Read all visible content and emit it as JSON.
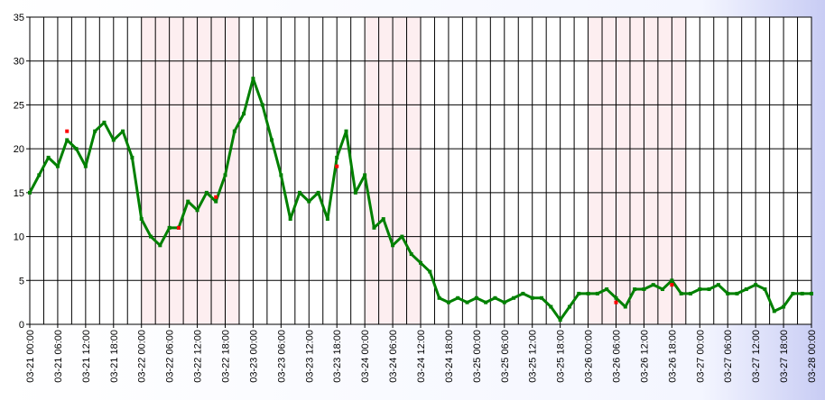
{
  "chart_data": {
    "type": "line",
    "x": [
      "03-21 00:00",
      "03-21 02:00",
      "03-21 04:00",
      "03-21 06:00",
      "03-21 08:00",
      "03-21 10:00",
      "03-21 12:00",
      "03-21 14:00",
      "03-21 16:00",
      "03-21 18:00",
      "03-21 20:00",
      "03-21 22:00",
      "03-22 00:00",
      "03-22 02:00",
      "03-22 04:00",
      "03-22 06:00",
      "03-22 08:00",
      "03-22 10:00",
      "03-22 12:00",
      "03-22 14:00",
      "03-22 16:00",
      "03-22 18:00",
      "03-22 20:00",
      "03-22 22:00",
      "03-23 00:00",
      "03-23 02:00",
      "03-23 04:00",
      "03-23 06:00",
      "03-23 08:00",
      "03-23 10:00",
      "03-23 12:00",
      "03-23 14:00",
      "03-23 16:00",
      "03-23 18:00",
      "03-23 20:00",
      "03-23 22:00",
      "03-24 00:00",
      "03-24 02:00",
      "03-24 04:00",
      "03-24 06:00",
      "03-24 08:00",
      "03-24 10:00",
      "03-24 12:00",
      "03-24 14:00",
      "03-24 16:00",
      "03-24 18:00",
      "03-24 20:00",
      "03-24 22:00",
      "03-25 00:00",
      "03-25 02:00",
      "03-25 04:00",
      "03-25 06:00",
      "03-25 08:00",
      "03-25 10:00",
      "03-25 12:00",
      "03-25 14:00",
      "03-25 16:00",
      "03-25 18:00",
      "03-25 20:00",
      "03-25 22:00",
      "03-26 00:00",
      "03-26 02:00",
      "03-26 04:00",
      "03-26 06:00",
      "03-26 08:00",
      "03-26 10:00",
      "03-26 12:00",
      "03-26 14:00",
      "03-26 16:00",
      "03-26 18:00",
      "03-26 20:00",
      "03-26 22:00",
      "03-27 00:00",
      "03-27 02:00",
      "03-27 04:00",
      "03-27 06:00",
      "03-27 08:00",
      "03-27 10:00",
      "03-27 12:00",
      "03-27 14:00",
      "03-27 16:00",
      "03-27 18:00",
      "03-27 20:00",
      "03-27 22:00",
      "03-28 00:00"
    ],
    "series": [
      {
        "color": "#008000",
        "values": [
          15,
          17,
          19,
          18,
          21,
          20,
          18,
          22,
          23,
          21,
          22,
          19,
          12,
          10,
          9,
          11,
          11,
          14,
          13,
          15,
          14,
          17,
          22,
          24,
          28,
          25,
          21,
          17,
          12,
          15,
          14,
          15,
          12,
          19,
          22,
          15,
          17,
          11,
          12,
          9,
          10,
          8,
          7,
          6,
          3,
          2.5,
          3,
          2.5,
          3,
          2.5,
          3,
          2.5,
          3,
          3.5,
          3,
          3,
          2,
          0.5,
          2,
          3.5,
          3.5,
          3.5,
          4,
          3,
          2,
          4,
          4,
          4.5,
          4,
          5,
          3.5,
          3.5,
          4,
          4,
          4.5,
          3.5,
          3.5,
          4,
          4.5,
          4,
          1.5,
          2,
          3.5,
          3.5,
          3.5
        ]
      },
      {
        "color": "#ff0000",
        "values": [
          null,
          null,
          null,
          null,
          22,
          null,
          null,
          null,
          null,
          null,
          null,
          null,
          null,
          null,
          null,
          null,
          11,
          null,
          null,
          null,
          14.5,
          null,
          null,
          null,
          null,
          null,
          null,
          null,
          null,
          null,
          null,
          null,
          null,
          18,
          null,
          null,
          null,
          null,
          null,
          null,
          null,
          null,
          null,
          null,
          null,
          null,
          null,
          null,
          null,
          null,
          null,
          null,
          null,
          null,
          null,
          null,
          null,
          null,
          null,
          null,
          null,
          null,
          null,
          2.5,
          null,
          null,
          null,
          null,
          null,
          4.5,
          null,
          null,
          null,
          null,
          null,
          null,
          null,
          null,
          null,
          null,
          null,
          null,
          null,
          null,
          null
        ]
      }
    ],
    "xlim": [
      "03-21 00:00",
      "03-28 00:00"
    ],
    "xticks": [
      "03-21 00:00",
      "03-21 06:00",
      "03-21 12:00",
      "03-21 18:00",
      "03-22 00:00",
      "03-22 06:00",
      "03-22 12:00",
      "03-22 18:00",
      "03-23 00:00",
      "03-23 06:00",
      "03-23 12:00",
      "03-23 18:00",
      "03-24 00:00",
      "03-24 06:00",
      "03-24 12:00",
      "03-24 18:00",
      "03-25 00:00",
      "03-25 06:00",
      "03-25 12:00",
      "03-25 18:00",
      "03-26 00:00",
      "03-26 06:00",
      "03-26 12:00",
      "03-26 18:00",
      "03-27 00:00",
      "03-27 06:00",
      "03-27 12:00",
      "03-27 18:00",
      "03-28 00:00"
    ],
    "ylim": [
      0,
      35
    ],
    "yticks": [
      0,
      5,
      10,
      15,
      20,
      25,
      30,
      35
    ],
    "grid": true,
    "shaded": [
      [
        "03-22 00:00",
        "03-22 21:00"
      ],
      [
        "03-24 00:00",
        "03-24 12:00"
      ],
      [
        "03-26 00:00",
        "03-26 21:00"
      ]
    ],
    "shade_color": "#fdeef0"
  }
}
